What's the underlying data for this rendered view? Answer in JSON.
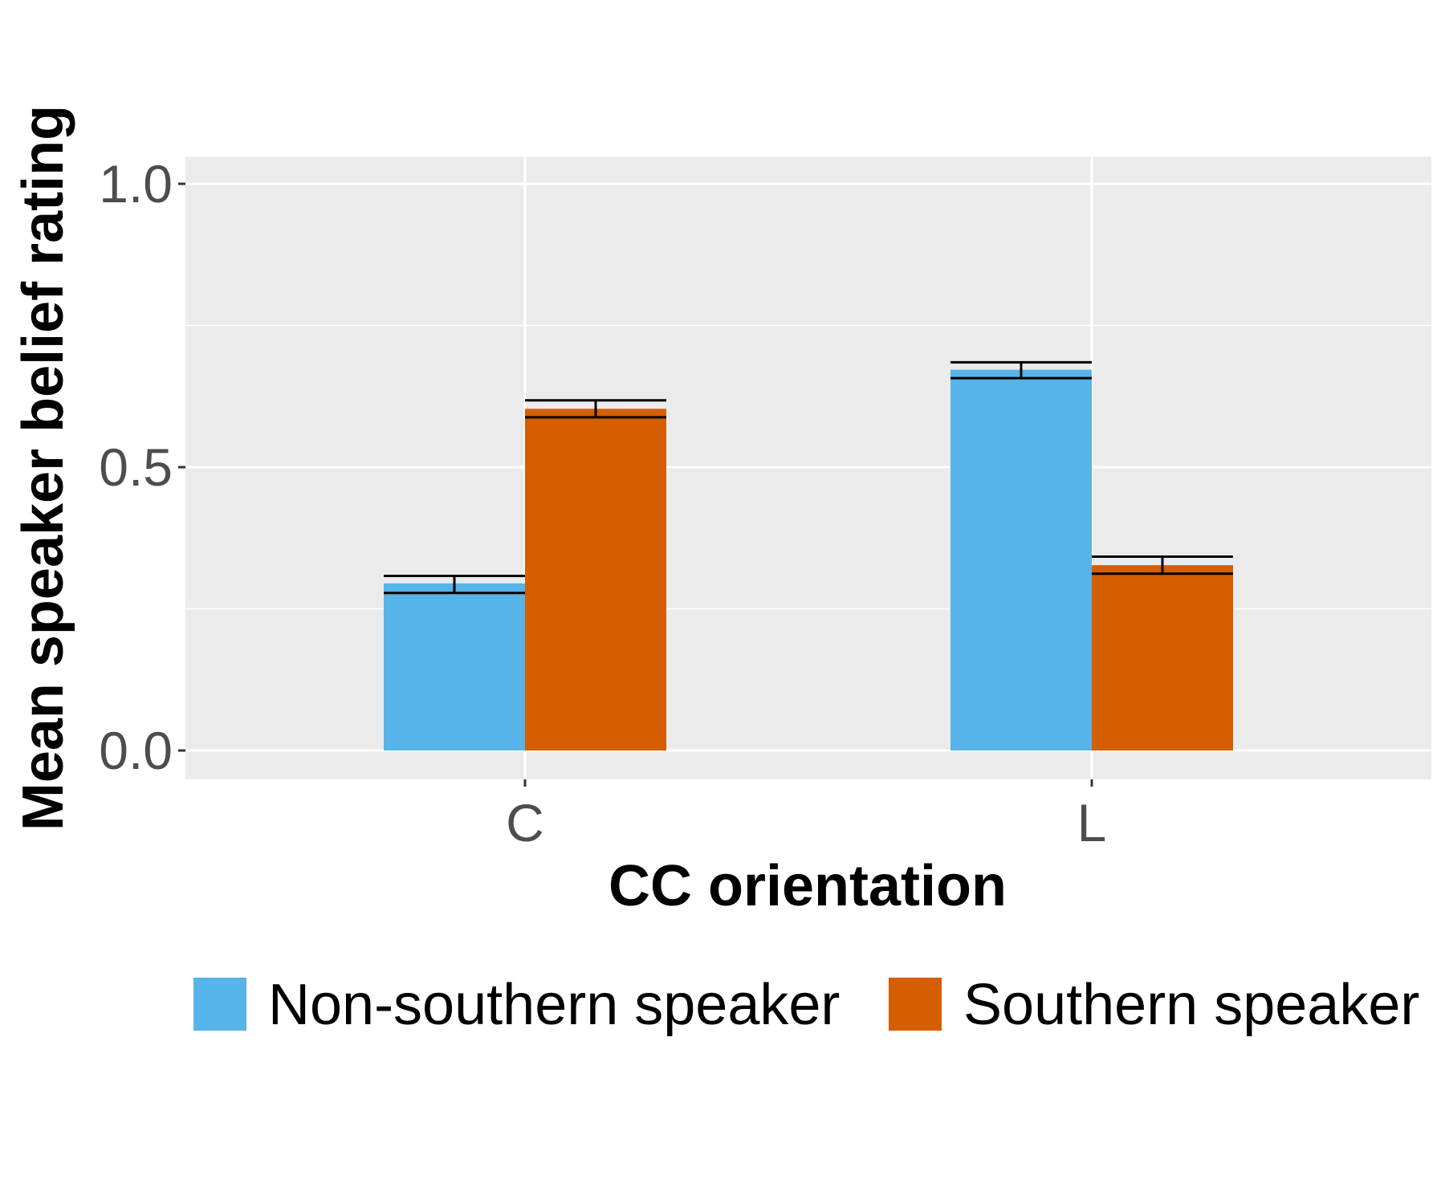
{
  "chart_data": {
    "type": "bar",
    "xlabel": "CC orientation",
    "ylabel": "Mean speaker belief rating",
    "categories": [
      "C",
      "L"
    ],
    "ylim": [
      -0.05,
      1.05
    ],
    "yticks": [
      "0.0",
      "0.5",
      "1.0"
    ],
    "grid": true,
    "legend_position": "bottom",
    "series": [
      {
        "name": "Non-southern speaker",
        "color": "#56B4E9",
        "values": [
          0.295,
          0.672
        ],
        "error_low": [
          0.278,
          0.657
        ],
        "error_high": [
          0.308,
          0.685
        ]
      },
      {
        "name": "Southern speaker",
        "color": "#D55E00",
        "values": [
          0.603,
          0.327
        ],
        "error_low": [
          0.588,
          0.312
        ],
        "error_high": [
          0.618,
          0.342
        ]
      }
    ]
  }
}
